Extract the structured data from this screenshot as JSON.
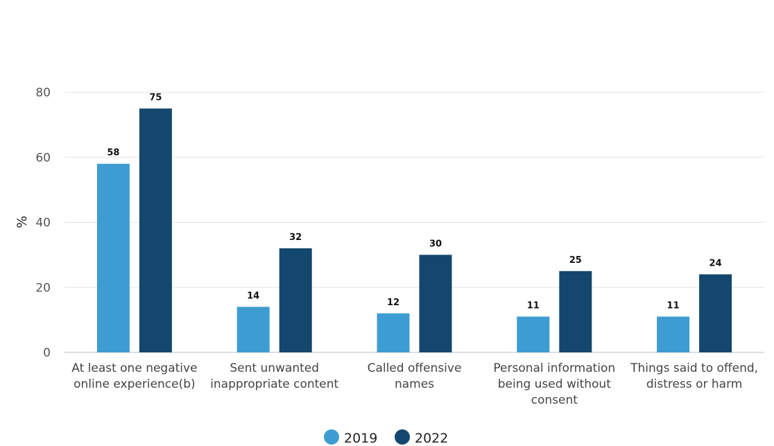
{
  "chart_data": {
    "type": "bar",
    "ylabel": "%",
    "ylim": [
      0,
      80
    ],
    "yticks": [
      "0",
      "20",
      "40",
      "60",
      "80"
    ],
    "grid": true,
    "legend_position": "bottom-center",
    "categories": [
      [
        "At least one negative",
        "online experience(b)"
      ],
      [
        "Sent unwanted",
        "inappropriate content"
      ],
      [
        "Called offensive",
        "names"
      ],
      [
        "Personal information",
        "being used without",
        "consent"
      ],
      [
        "Things said to offend,",
        "distress or harm"
      ]
    ],
    "series": [
      {
        "name": "2019",
        "color": "#3d9dd2",
        "values": [
          58,
          14,
          12,
          11,
          11
        ]
      },
      {
        "name": "2022",
        "color": "#14476e",
        "values": [
          75,
          32,
          30,
          25,
          24
        ]
      }
    ]
  }
}
